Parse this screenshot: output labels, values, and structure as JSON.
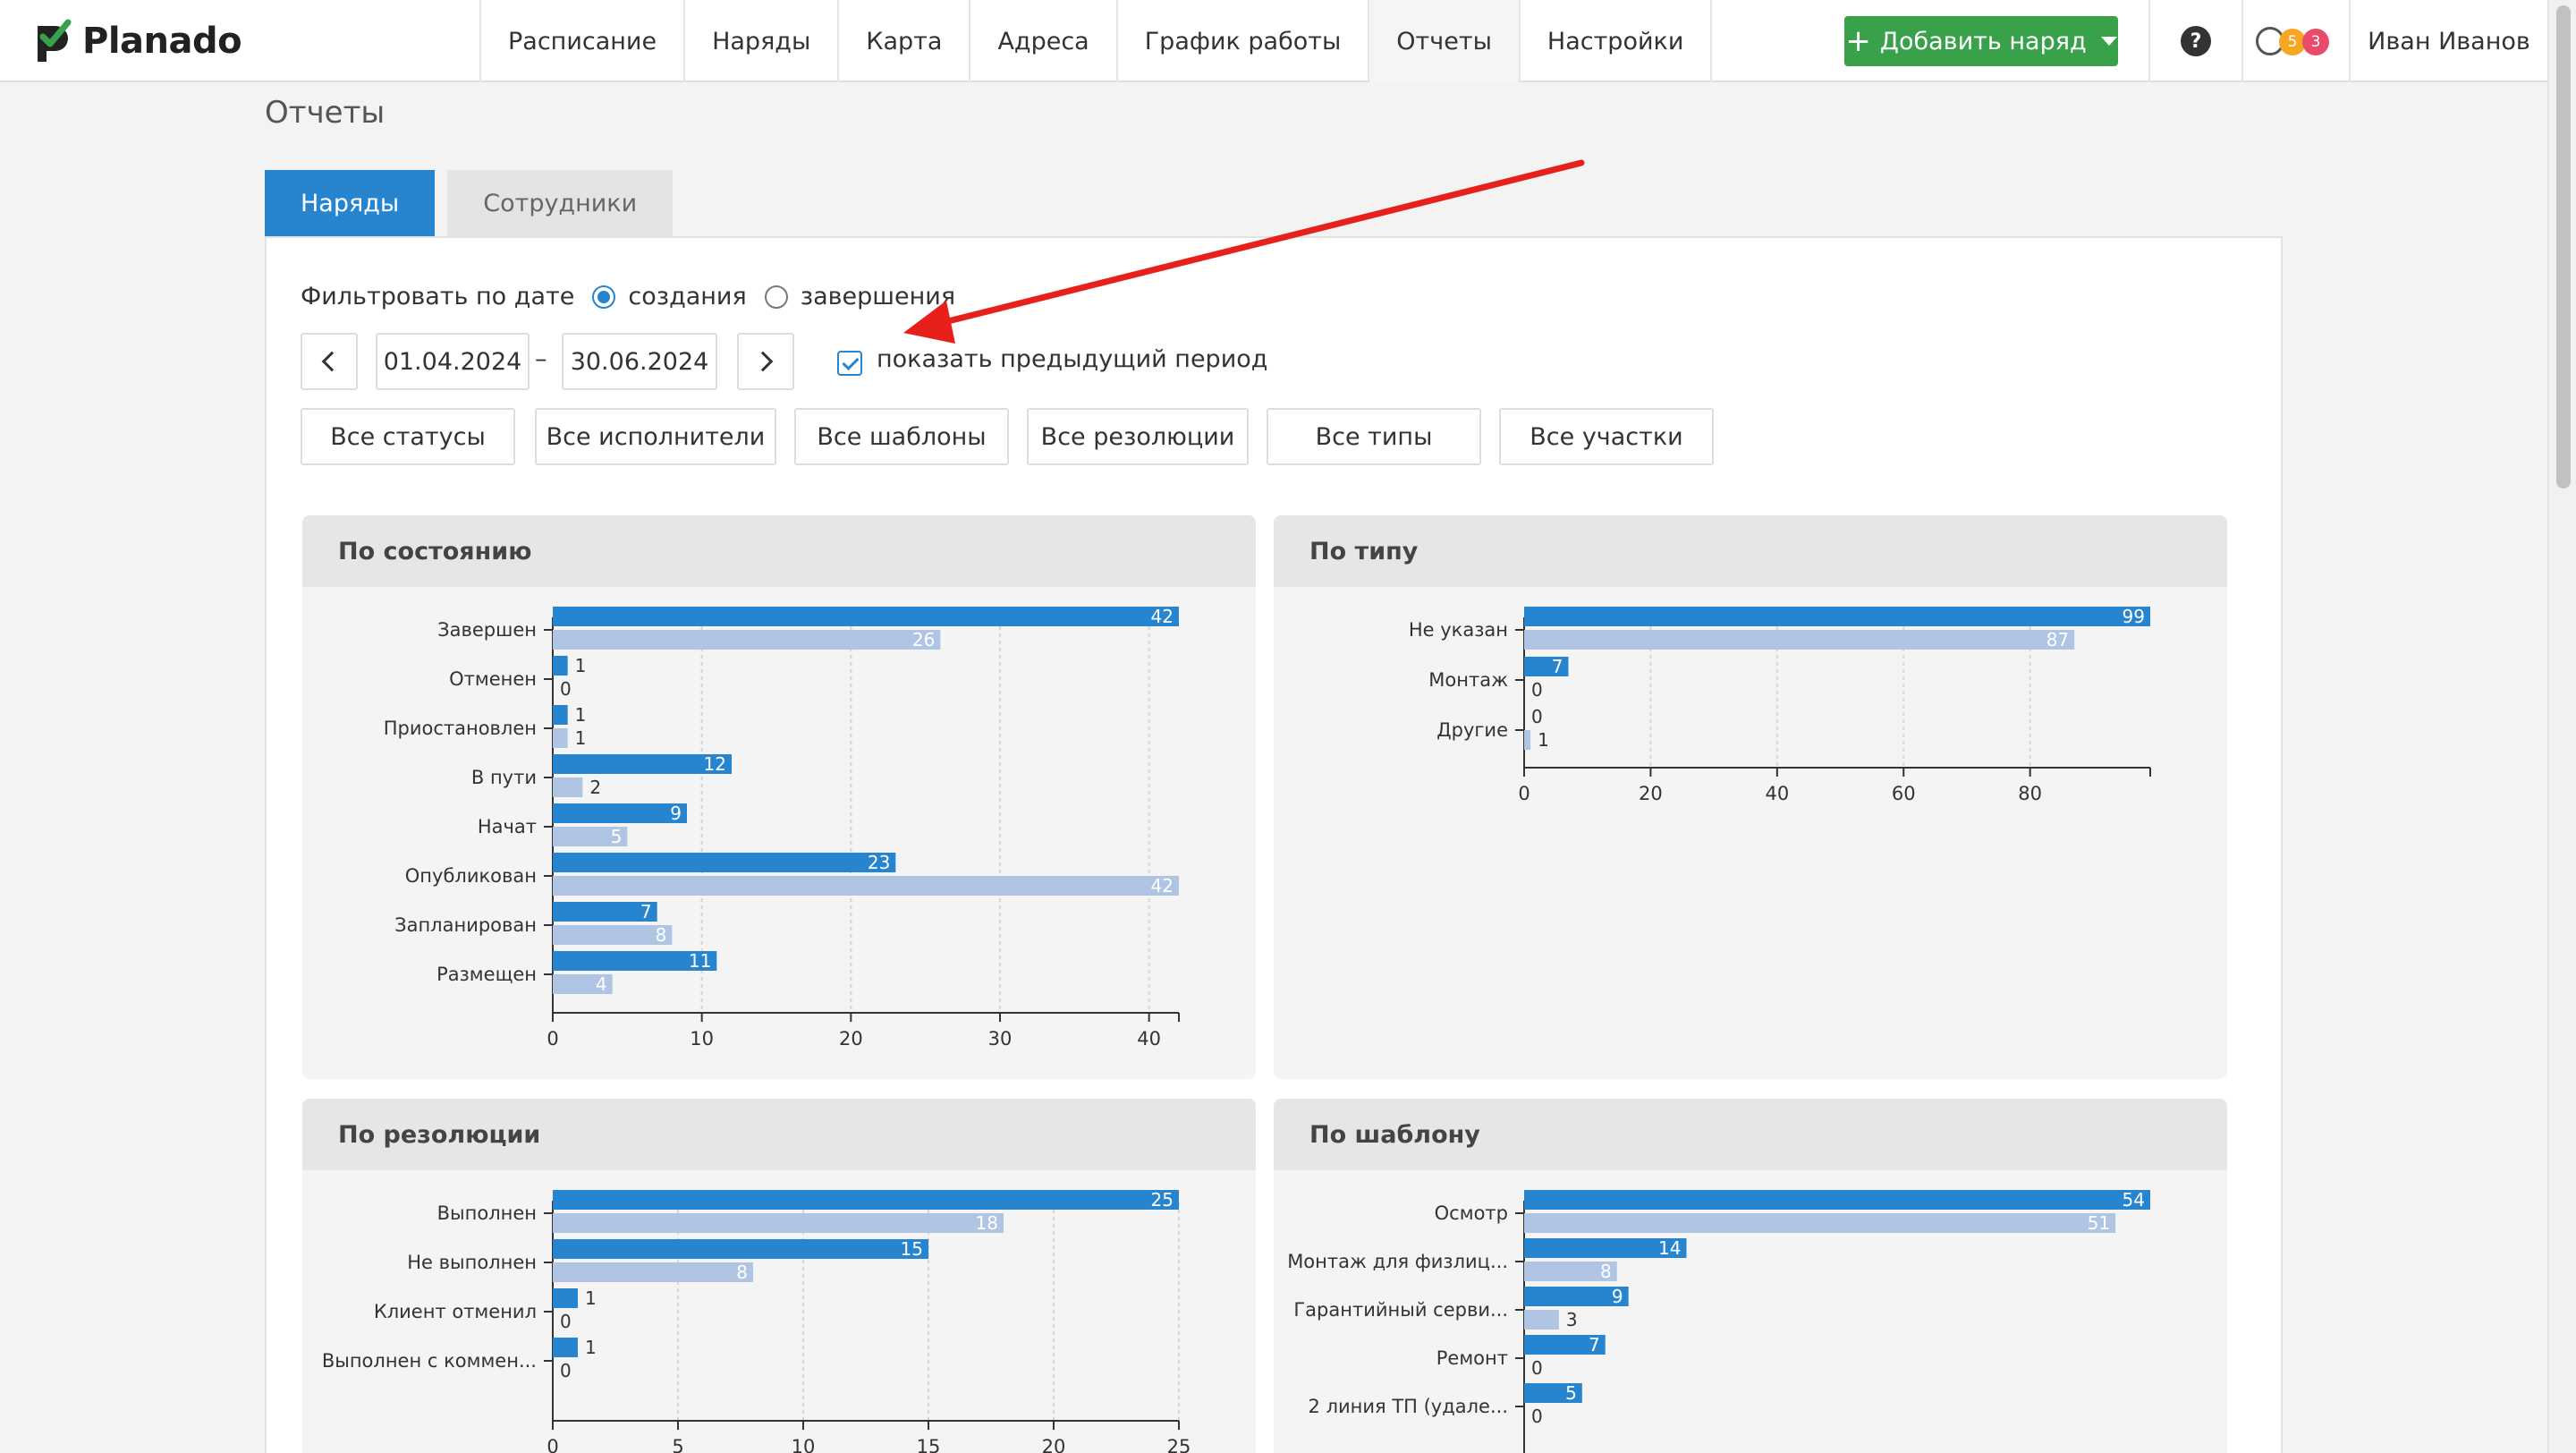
{
  "app": {
    "logo_text": "Planado"
  },
  "nav": {
    "items": [
      {
        "label": "Расписание"
      },
      {
        "label": "Наряды"
      },
      {
        "label": "Карта"
      },
      {
        "label": "Адреса"
      },
      {
        "label": "График работы"
      },
      {
        "label": "Отчеты",
        "active": true
      },
      {
        "label": "Настройки"
      }
    ],
    "add_button": "Добавить наряд",
    "help": "?",
    "counter_orange": "5",
    "counter_red": "3",
    "user_name": "Иван Иванов"
  },
  "page": {
    "title": "Отчеты",
    "tabs": [
      {
        "label": "Наряды",
        "active": true
      },
      {
        "label": "Сотрудники",
        "active": false
      }
    ]
  },
  "filters": {
    "by_date_label": "Фильтровать по дате",
    "radio_created": "создания",
    "radio_completed": "завершения",
    "date_from": "01.04.2024",
    "date_sep": "–",
    "date_to": "30.06.2024",
    "show_previous": "показать предыдущий период",
    "buttons": [
      "Все статусы",
      "Все исполнители",
      "Все шаблоны",
      "Все резолюции",
      "Все типы",
      "Все участки"
    ]
  },
  "colors": {
    "current": "#2785cf",
    "previous": "#b0c4e3",
    "accent_green": "#3aa14b",
    "arrow": "#e8201c"
  },
  "chart_data": [
    {
      "id": "status",
      "title": "По состоянию",
      "type": "bar",
      "orientation": "horizontal",
      "categories": [
        "Завершен",
        "Отменен",
        "Приостановлен",
        "В пути",
        "Начат",
        "Опубликован",
        "Запланирован",
        "Размещен"
      ],
      "series": [
        {
          "values": [
            42,
            1,
            1,
            12,
            9,
            23,
            7,
            11
          ]
        },
        {
          "values": [
            26,
            0,
            1,
            2,
            5,
            42,
            8,
            4
          ]
        }
      ],
      "xlim": [
        0,
        42
      ],
      "xticks": [
        0,
        10,
        20,
        30,
        40
      ]
    },
    {
      "id": "type",
      "title": "По типу",
      "type": "bar",
      "orientation": "horizontal",
      "categories": [
        "Не указан",
        "Монтаж",
        "Другие"
      ],
      "series": [
        {
          "values": [
            99,
            7,
            0
          ]
        },
        {
          "values": [
            87,
            0,
            1
          ]
        }
      ],
      "xlim": [
        0,
        99
      ],
      "xticks": [
        0,
        20,
        40,
        60,
        80
      ]
    },
    {
      "id": "resolution",
      "title": "По резолюции",
      "type": "bar",
      "orientation": "horizontal",
      "categories": [
        "Выполнен",
        "Не выполнен",
        "Клиент отменил",
        "Выполнен с коммен..."
      ],
      "series": [
        {
          "values": [
            25,
            15,
            1,
            1
          ]
        },
        {
          "values": [
            18,
            8,
            0,
            0
          ]
        }
      ],
      "xlim": [
        0,
        25
      ],
      "xticks": [
        0,
        5,
        10,
        15,
        20,
        25
      ]
    },
    {
      "id": "template",
      "title": "По шаблону",
      "type": "bar",
      "orientation": "horizontal",
      "categories": [
        "Осмотр",
        "Монтаж для физлиц...",
        "Гарантийный серви...",
        "Ремонт",
        "2 линия ТП (удале..."
      ],
      "series": [
        {
          "values": [
            54,
            14,
            9,
            7,
            5
          ]
        },
        {
          "values": [
            51,
            8,
            3,
            0,
            0
          ]
        }
      ],
      "xlim": [
        0,
        54
      ],
      "xticks": []
    }
  ]
}
